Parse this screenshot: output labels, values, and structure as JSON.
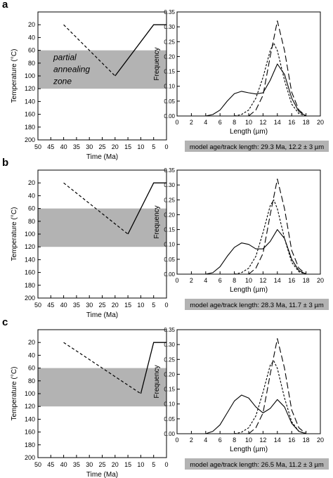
{
  "figure": {
    "panels": [
      {
        "letter": "a",
        "model_label": "model age/track length: 29.3 Ma, 12.2 ± 3 µm",
        "zone_label": [
          "partial",
          "annealing",
          "zone"
        ]
      },
      {
        "letter": "b",
        "model_label": "model age/track length: 28.3 Ma, 11.7 ± 3 µm",
        "zone_label": []
      },
      {
        "letter": "c",
        "model_label": "model age/track length: 26.5 Ma, 11.2 ± 3 µm",
        "zone_label": []
      }
    ]
  },
  "chart_data": [
    {
      "panel": "a",
      "type": "line",
      "chart": "thermal-history",
      "xlabel": "Time (Ma)",
      "ylabel": "Temperature (°C)",
      "xlim": [
        50,
        0
      ],
      "ylim": [
        200,
        0
      ],
      "x_ticks": [
        50,
        45,
        40,
        35,
        30,
        25,
        20,
        15,
        10,
        5,
        0
      ],
      "y_ticks": [
        20,
        40,
        60,
        80,
        100,
        120,
        140,
        160,
        180,
        200
      ],
      "shaded_band": [
        60,
        120
      ],
      "dashed_path": [
        [
          40,
          20
        ],
        [
          20,
          100
        ]
      ],
      "solid_path": [
        [
          20,
          100
        ],
        [
          5,
          20
        ],
        [
          0,
          20
        ]
      ]
    },
    {
      "panel": "a",
      "type": "line",
      "chart": "track-length-distribution",
      "xlabel": "Length (µm)",
      "ylabel": "Frequency",
      "xlim": [
        0,
        20
      ],
      "ylim": [
        0,
        0.35
      ],
      "x_ticks": [
        0,
        2,
        4,
        6,
        8,
        10,
        12,
        14,
        16,
        18,
        20
      ],
      "y_ticks": [
        0.0,
        0.05,
        0.1,
        0.15,
        0.2,
        0.25,
        0.3,
        0.35
      ],
      "y_tick_labels": [
        "0.00",
        "0.05",
        "0.10",
        "0.15",
        "0.20",
        "0.25",
        "0.30",
        "0.35"
      ],
      "series": [
        {
          "style": "solid",
          "points": [
            [
              4,
              0
            ],
            [
              5,
              0.005
            ],
            [
              6,
              0.02
            ],
            [
              7,
              0.05
            ],
            [
              8,
              0.075
            ],
            [
              9,
              0.083
            ],
            [
              10,
              0.078
            ],
            [
              11,
              0.074
            ],
            [
              12,
              0.078
            ],
            [
              13,
              0.12
            ],
            [
              14,
              0.175
            ],
            [
              15,
              0.14
            ],
            [
              16,
              0.06
            ],
            [
              17,
              0.015
            ],
            [
              18,
              0
            ]
          ]
        },
        {
          "style": "short-dash",
          "points": [
            [
              8,
              0
            ],
            [
              9,
              0.005
            ],
            [
              10,
              0.02
            ],
            [
              11,
              0.06
            ],
            [
              12,
              0.13
            ],
            [
              13,
              0.22
            ],
            [
              13.5,
              0.245
            ],
            [
              14,
              0.22
            ],
            [
              15,
              0.12
            ],
            [
              16,
              0.04
            ],
            [
              17,
              0.008
            ],
            [
              18,
              0
            ]
          ]
        },
        {
          "style": "long-dash",
          "points": [
            [
              10,
              0
            ],
            [
              11,
              0.02
            ],
            [
              12,
              0.07
            ],
            [
              13,
              0.2
            ],
            [
              14,
              0.32
            ],
            [
              15,
              0.22
            ],
            [
              16,
              0.08
            ],
            [
              17,
              0.02
            ],
            [
              18,
              0
            ]
          ]
        }
      ]
    },
    {
      "panel": "b",
      "type": "line",
      "chart": "thermal-history",
      "xlabel": "Time (Ma)",
      "ylabel": "Temperature (°C)",
      "xlim": [
        50,
        0
      ],
      "ylim": [
        200,
        0
      ],
      "x_ticks": [
        50,
        45,
        40,
        35,
        30,
        25,
        20,
        15,
        10,
        5,
        0
      ],
      "y_ticks": [
        20,
        40,
        60,
        80,
        100,
        120,
        140,
        160,
        180,
        200
      ],
      "shaded_band": [
        60,
        120
      ],
      "dashed_path": [
        [
          40,
          20
        ],
        [
          15,
          100
        ]
      ],
      "solid_path": [
        [
          15,
          100
        ],
        [
          5,
          20
        ],
        [
          0,
          20
        ]
      ]
    },
    {
      "panel": "b",
      "type": "line",
      "chart": "track-length-distribution",
      "xlabel": "Length (µm)",
      "ylabel": "Frequency",
      "xlim": [
        0,
        20
      ],
      "ylim": [
        0,
        0.35
      ],
      "x_ticks": [
        0,
        2,
        4,
        6,
        8,
        10,
        12,
        14,
        16,
        18,
        20
      ],
      "y_ticks": [
        0.0,
        0.05,
        0.1,
        0.15,
        0.2,
        0.25,
        0.3,
        0.35
      ],
      "y_tick_labels": [
        "0.00",
        "0.05",
        "0.10",
        "0.15",
        "0.20",
        "0.25",
        "0.30",
        "0.35"
      ],
      "series": [
        {
          "style": "solid",
          "points": [
            [
              4,
              0
            ],
            [
              5,
              0.005
            ],
            [
              6,
              0.025
            ],
            [
              7,
              0.06
            ],
            [
              8,
              0.09
            ],
            [
              9,
              0.105
            ],
            [
              10,
              0.1
            ],
            [
              11,
              0.085
            ],
            [
              12,
              0.085
            ],
            [
              13,
              0.11
            ],
            [
              14,
              0.15
            ],
            [
              15,
              0.12
            ],
            [
              16,
              0.05
            ],
            [
              17,
              0.012
            ],
            [
              18,
              0
            ]
          ]
        },
        {
          "style": "short-dash",
          "points": [
            [
              8,
              0
            ],
            [
              9,
              0.005
            ],
            [
              10,
              0.02
            ],
            [
              11,
              0.06
            ],
            [
              12,
              0.14
            ],
            [
              13,
              0.23
            ],
            [
              13.5,
              0.25
            ],
            [
              14,
              0.22
            ],
            [
              15,
              0.12
            ],
            [
              16,
              0.04
            ],
            [
              17,
              0.008
            ],
            [
              18,
              0
            ]
          ]
        },
        {
          "style": "long-dash",
          "points": [
            [
              10,
              0
            ],
            [
              11,
              0.02
            ],
            [
              12,
              0.07
            ],
            [
              13,
              0.2
            ],
            [
              14,
              0.32
            ],
            [
              15,
              0.22
            ],
            [
              16,
              0.08
            ],
            [
              17,
              0.02
            ],
            [
              18,
              0
            ]
          ]
        }
      ]
    },
    {
      "panel": "c",
      "type": "line",
      "chart": "thermal-history",
      "xlabel": "Time (Ma)",
      "ylabel": "Temperature (°C)",
      "xlim": [
        50,
        0
      ],
      "ylim": [
        200,
        0
      ],
      "x_ticks": [
        50,
        45,
        40,
        35,
        30,
        25,
        20,
        15,
        10,
        5,
        0
      ],
      "y_ticks": [
        20,
        40,
        60,
        80,
        100,
        120,
        140,
        160,
        180,
        200
      ],
      "shaded_band": [
        60,
        120
      ],
      "dashed_path": [
        [
          40,
          20
        ],
        [
          10,
          100
        ]
      ],
      "solid_path": [
        [
          10,
          100
        ],
        [
          5,
          20
        ],
        [
          0,
          20
        ]
      ]
    },
    {
      "panel": "c",
      "type": "line",
      "chart": "track-length-distribution",
      "xlabel": "Length (µm)",
      "ylabel": "Frequency",
      "xlim": [
        0,
        20
      ],
      "ylim": [
        0,
        0.35
      ],
      "x_ticks": [
        0,
        2,
        4,
        6,
        8,
        10,
        12,
        14,
        16,
        18,
        20
      ],
      "y_ticks": [
        0.0,
        0.05,
        0.1,
        0.15,
        0.2,
        0.25,
        0.3,
        0.35
      ],
      "y_tick_labels": [
        "0.00",
        "0.05",
        "0.10",
        "0.15",
        "0.20",
        "0.25",
        "0.30",
        "0.35"
      ],
      "series": [
        {
          "style": "solid",
          "points": [
            [
              4,
              0
            ],
            [
              5,
              0.008
            ],
            [
              6,
              0.03
            ],
            [
              7,
              0.07
            ],
            [
              8,
              0.11
            ],
            [
              9,
              0.13
            ],
            [
              10,
              0.12
            ],
            [
              11,
              0.09
            ],
            [
              12,
              0.07
            ],
            [
              13,
              0.085
            ],
            [
              14,
              0.115
            ],
            [
              15,
              0.09
            ],
            [
              16,
              0.035
            ],
            [
              17,
              0.008
            ],
            [
              18,
              0
            ]
          ]
        },
        {
          "style": "short-dash",
          "points": [
            [
              8,
              0
            ],
            [
              9,
              0.005
            ],
            [
              10,
              0.02
            ],
            [
              11,
              0.06
            ],
            [
              12,
              0.14
            ],
            [
              13,
              0.23
            ],
            [
              13.5,
              0.245
            ],
            [
              14,
              0.22
            ],
            [
              15,
              0.12
            ],
            [
              16,
              0.04
            ],
            [
              17,
              0.008
            ],
            [
              18,
              0
            ]
          ]
        },
        {
          "style": "long-dash",
          "points": [
            [
              10,
              0
            ],
            [
              11,
              0.02
            ],
            [
              12,
              0.07
            ],
            [
              13,
              0.2
            ],
            [
              14,
              0.32
            ],
            [
              15,
              0.22
            ],
            [
              16,
              0.08
            ],
            [
              17,
              0.02
            ],
            [
              18,
              0
            ]
          ]
        }
      ]
    }
  ]
}
